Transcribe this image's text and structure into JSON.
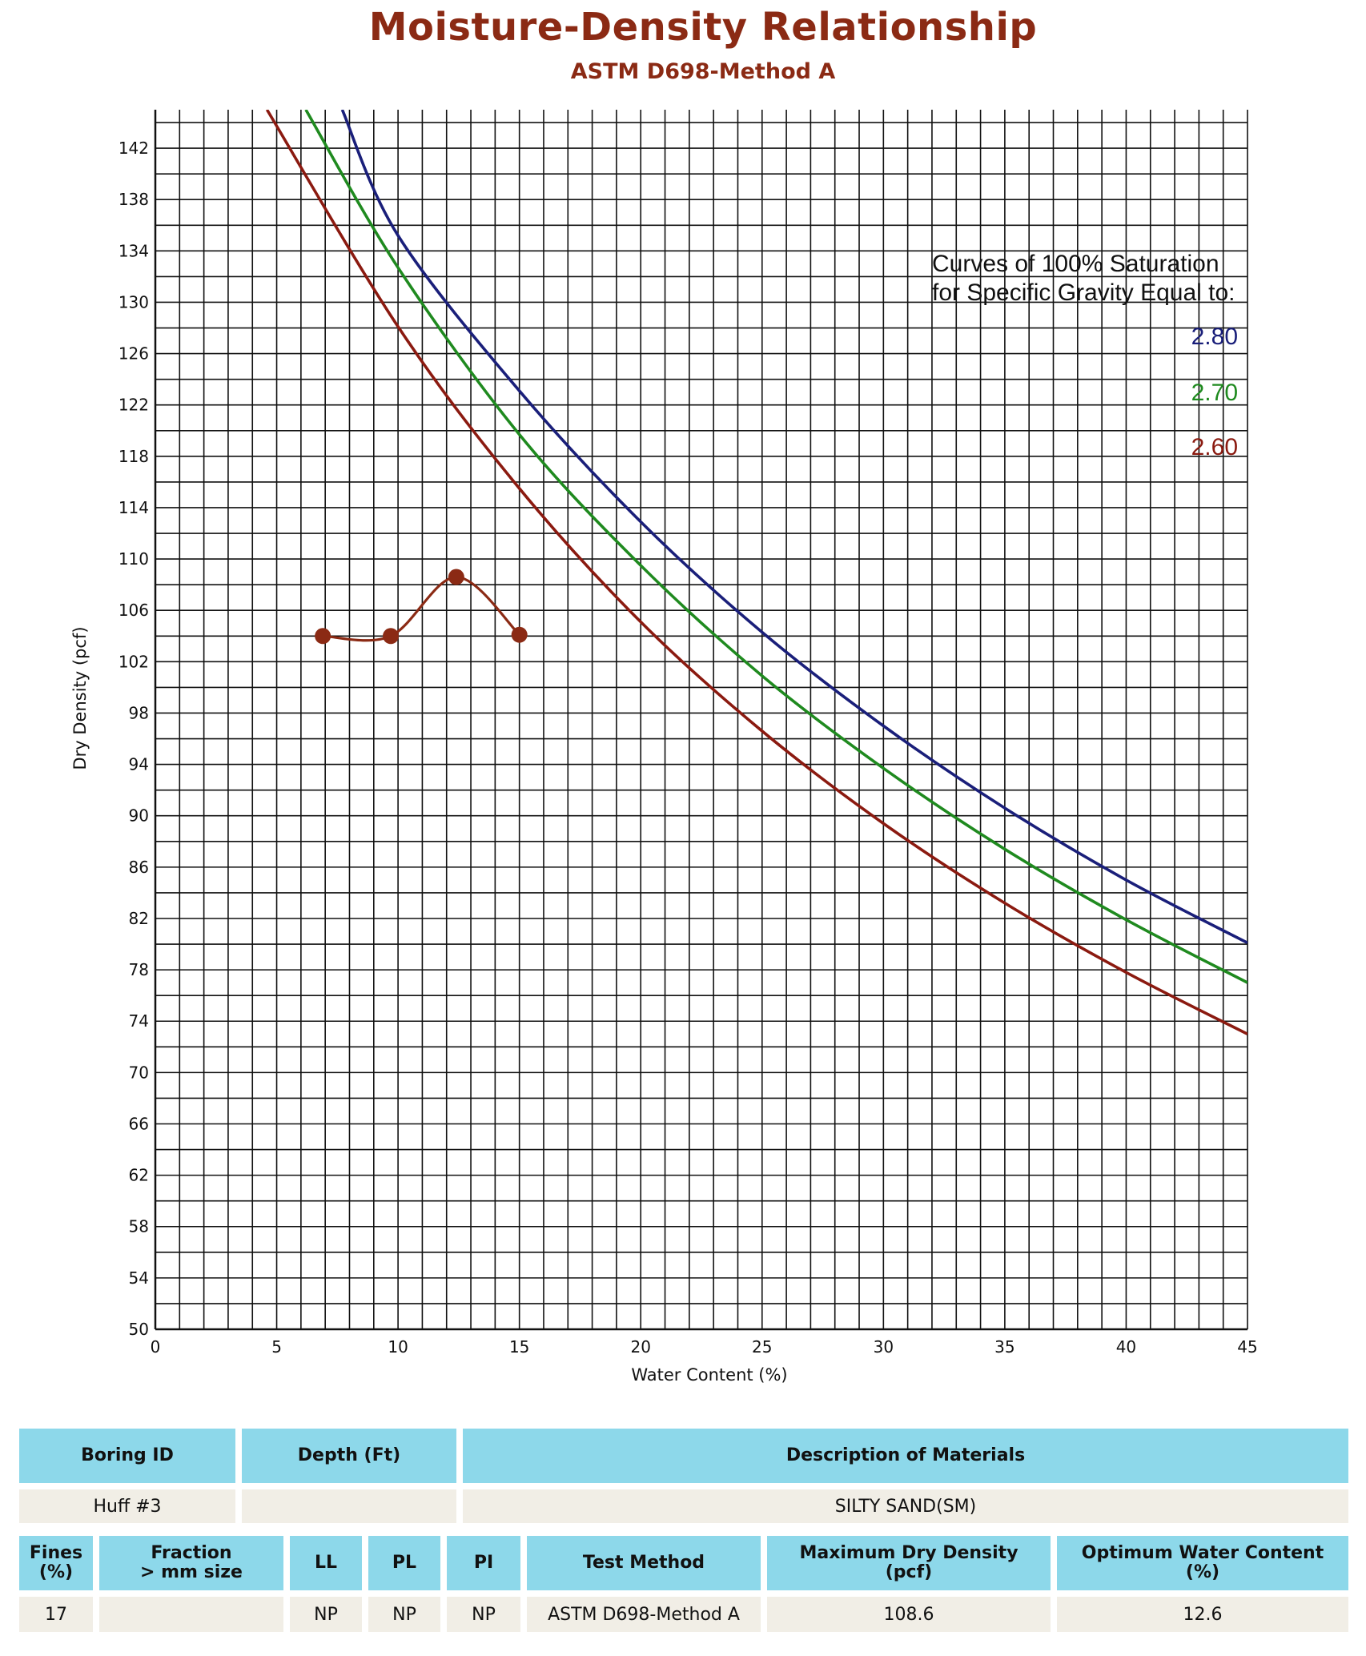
{
  "header": {
    "title": "Moisture-Density Relationship",
    "subtitle": "ASTM D698-Method A"
  },
  "legend": {
    "heading_line1": "Curves of 100% Saturation",
    "heading_line2": "for Specific Gravity Equal to:",
    "items": [
      {
        "label": "2.80",
        "color": "#1a1f7a"
      },
      {
        "label": "2.70",
        "color": "#1f8a1f"
      },
      {
        "label": "2.60",
        "color": "#8b1a10"
      }
    ]
  },
  "chart_data": {
    "type": "line",
    "xlabel": "Water Content (%)",
    "ylabel": "Dry Density (pcf)",
    "xlim": [
      0,
      45
    ],
    "ylim": [
      50,
      145
    ],
    "xticks": [
      0,
      5,
      10,
      15,
      20,
      25,
      30,
      35,
      40,
      45
    ],
    "yticks": [
      50,
      54,
      58,
      62,
      66,
      70,
      74,
      78,
      82,
      86,
      90,
      94,
      98,
      102,
      106,
      110,
      114,
      118,
      122,
      126,
      130,
      134,
      138,
      142
    ],
    "grid": true,
    "series": [
      {
        "name": "2.80",
        "kind": "saturation",
        "color": "#1a1f7a",
        "x": [
          7.7,
          10,
          15,
          20,
          25,
          30,
          35,
          40,
          45
        ],
        "y": [
          145,
          135.2,
          123.1,
          112.9,
          104.3,
          97.0,
          90.6,
          85.0,
          80.1
        ]
      },
      {
        "name": "2.70",
        "kind": "saturation",
        "color": "#1f8a1f",
        "x": [
          6.2,
          10,
          15,
          20,
          25,
          30,
          35,
          40,
          45
        ],
        "y": [
          145,
          132.7,
          119.7,
          109.5,
          100.9,
          93.7,
          87.4,
          81.9,
          77.0
        ]
      },
      {
        "name": "2.60",
        "kind": "saturation",
        "color": "#8b1a10",
        "x": [
          4.6,
          10,
          15,
          20,
          25,
          30,
          35,
          40,
          45
        ],
        "y": [
          145,
          128.1,
          115.5,
          105.1,
          96.6,
          89.4,
          83.2,
          77.8,
          73.0
        ]
      },
      {
        "name": "",
        "kind": "test",
        "color": "#8b2a14",
        "x": [
          6.9,
          9.7,
          12.4,
          15.0
        ],
        "y": [
          104.0,
          104.0,
          108.6,
          104.1
        ]
      }
    ]
  },
  "table1": {
    "headers": [
      "Boring ID",
      "Depth (Ft)",
      "Description of Materials"
    ],
    "values": [
      "Huff #3",
      "",
      "SILTY SAND(SM)"
    ]
  },
  "table2": {
    "headers": [
      {
        "l1": "Fines",
        "l2": "(%)"
      },
      {
        "l1": "Fraction",
        "l2": "> mm size"
      },
      {
        "l1": "LL",
        "l2": ""
      },
      {
        "l1": "PL",
        "l2": ""
      },
      {
        "l1": "PI",
        "l2": ""
      },
      {
        "l1": "Test Method",
        "l2": ""
      },
      {
        "l1": "Maximum Dry Density",
        "l2": "(pcf)"
      },
      {
        "l1": "Optimum Water Content",
        "l2": "(%)"
      }
    ],
    "values": [
      "17",
      "",
      "NP",
      "NP",
      "NP",
      "ASTM D698-Method A",
      "108.6",
      "12.6"
    ]
  }
}
